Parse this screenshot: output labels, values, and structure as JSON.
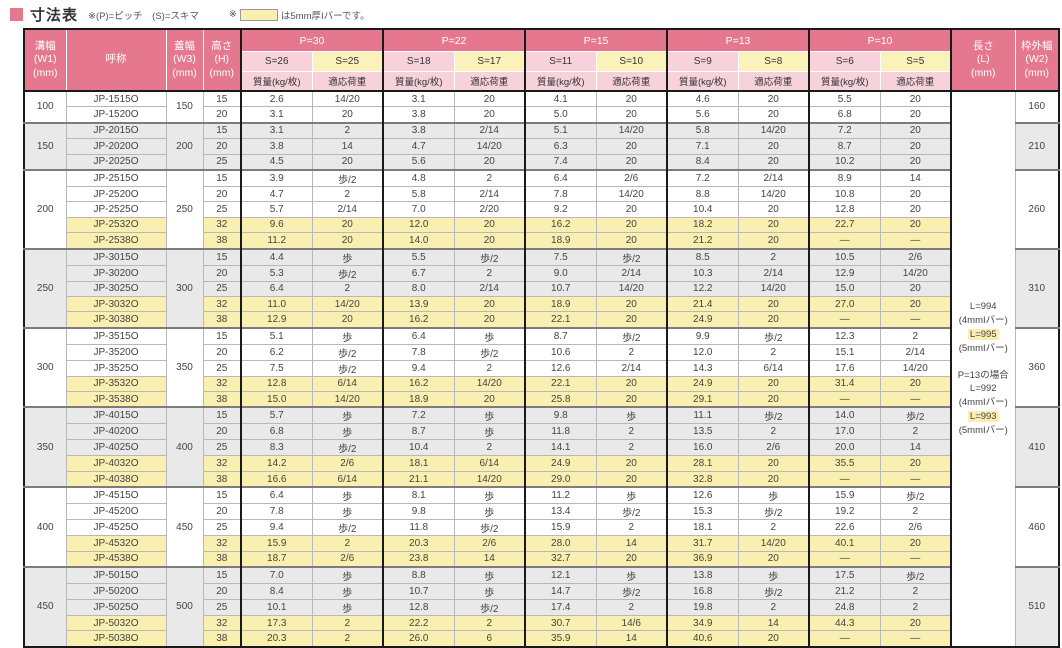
{
  "title": "寸法表",
  "legend": {
    "note1": "※(P)=ピッチ　(S)=スキマ",
    "note2_prefix": "※",
    "note2_suffix": "は5mm厚Iバーです。"
  },
  "colors": {
    "header_pink": "#e5788f",
    "subheader_pink": "#f7d2da",
    "s5_yellow": "#fbf2bb",
    "highlight_row_yellow": "#f9efb0",
    "group_gray": "#e9e9e9"
  },
  "headers": {
    "w1": "溝幅\n(W1)\n(mm)",
    "name": "呼称",
    "w3": "蓋幅\n(W3)\n(mm)",
    "h": "高さ\n(H)\n(mm)",
    "length": "長さ\n(L)\n(mm)",
    "w2": "枠外幅\n(W2)\n(mm)",
    "mass": "質量(kg/枚)",
    "load": "適応荷重"
  },
  "pitch_groups": [
    {
      "p": "P=30",
      "s4": "S=26",
      "s5": "S=25"
    },
    {
      "p": "P=22",
      "s4": "S=18",
      "s5": "S=17"
    },
    {
      "p": "P=15",
      "s4": "S=11",
      "s5": "S=10"
    },
    {
      "p": "P=13",
      "s4": "S=9",
      "s5": "S=8"
    },
    {
      "p": "P=10",
      "s4": "S=6",
      "s5": "S=5"
    }
  ],
  "length_notes": [
    {
      "text": "L=994",
      "hl": false
    },
    {
      "text": "(4mmIバー)",
      "hl": false
    },
    {
      "text": "L=995",
      "hl": true
    },
    {
      "text": "(5mmIバー)",
      "hl": false
    },
    {
      "text": "",
      "hl": false
    },
    {
      "text": "P=13の場合",
      "hl": false
    },
    {
      "text": "L=992",
      "hl": false
    },
    {
      "text": "(4mmIバー)",
      "hl": false
    },
    {
      "text": "L=993",
      "hl": true
    },
    {
      "text": "(5mmIバー)",
      "hl": false
    }
  ],
  "groups": [
    {
      "w1": "100",
      "w3": "150",
      "w2": "160",
      "shade": "white",
      "rows": [
        {
          "name": "JP-1515O",
          "h": "15",
          "hl": false,
          "v": [
            "2.6",
            "14/20",
            "3.1",
            "20",
            "4.1",
            "20",
            "4.6",
            "20",
            "5.5",
            "20"
          ]
        },
        {
          "name": "JP-1520O",
          "h": "20",
          "hl": false,
          "v": [
            "3.1",
            "20",
            "3.8",
            "20",
            "5.0",
            "20",
            "5.6",
            "20",
            "6.8",
            "20"
          ]
        }
      ]
    },
    {
      "w1": "150",
      "w3": "200",
      "w2": "210",
      "shade": "gray",
      "rows": [
        {
          "name": "JP-2015O",
          "h": "15",
          "hl": false,
          "v": [
            "3.1",
            "2",
            "3.8",
            "2/14",
            "5.1",
            "14/20",
            "5.8",
            "14/20",
            "7.2",
            "20"
          ]
        },
        {
          "name": "JP-2020O",
          "h": "20",
          "hl": false,
          "v": [
            "3.8",
            "14",
            "4.7",
            "14/20",
            "6.3",
            "20",
            "7.1",
            "20",
            "8.7",
            "20"
          ]
        },
        {
          "name": "JP-2025O",
          "h": "25",
          "hl": false,
          "v": [
            "4.5",
            "20",
            "5.6",
            "20",
            "7.4",
            "20",
            "8.4",
            "20",
            "10.2",
            "20"
          ]
        }
      ]
    },
    {
      "w1": "200",
      "w3": "250",
      "w2": "260",
      "shade": "white",
      "rows": [
        {
          "name": "JP-2515O",
          "h": "15",
          "hl": false,
          "v": [
            "3.9",
            "歩/2",
            "4.8",
            "2",
            "6.4",
            "2/6",
            "7.2",
            "2/14",
            "8.9",
            "14"
          ]
        },
        {
          "name": "JP-2520O",
          "h": "20",
          "hl": false,
          "v": [
            "4.7",
            "2",
            "5.8",
            "2/14",
            "7.8",
            "14/20",
            "8.8",
            "14/20",
            "10.8",
            "20"
          ]
        },
        {
          "name": "JP-2525O",
          "h": "25",
          "hl": false,
          "v": [
            "5.7",
            "2/14",
            "7.0",
            "2/20",
            "9.2",
            "20",
            "10.4",
            "20",
            "12.8",
            "20"
          ]
        },
        {
          "name": "JP-2532O",
          "h": "32",
          "hl": true,
          "v": [
            "9.6",
            "20",
            "12.0",
            "20",
            "16.2",
            "20",
            "18.2",
            "20",
            "22.7",
            "20"
          ]
        },
        {
          "name": "JP-2538O",
          "h": "38",
          "hl": true,
          "v": [
            "11.2",
            "20",
            "14.0",
            "20",
            "18.9",
            "20",
            "21.2",
            "20",
            "—",
            "—"
          ]
        }
      ]
    },
    {
      "w1": "250",
      "w3": "300",
      "w2": "310",
      "shade": "gray",
      "rows": [
        {
          "name": "JP-3015O",
          "h": "15",
          "hl": false,
          "v": [
            "4.4",
            "歩",
            "5.5",
            "歩/2",
            "7.5",
            "歩/2",
            "8.5",
            "2",
            "10.5",
            "2/6"
          ]
        },
        {
          "name": "JP-3020O",
          "h": "20",
          "hl": false,
          "v": [
            "5.3",
            "歩/2",
            "6.7",
            "2",
            "9.0",
            "2/14",
            "10.3",
            "2/14",
            "12.9",
            "14/20"
          ]
        },
        {
          "name": "JP-3025O",
          "h": "25",
          "hl": false,
          "v": [
            "6.4",
            "2",
            "8.0",
            "2/14",
            "10.7",
            "14/20",
            "12.2",
            "14/20",
            "15.0",
            "20"
          ]
        },
        {
          "name": "JP-3032O",
          "h": "32",
          "hl": true,
          "v": [
            "11.0",
            "14/20",
            "13.9",
            "20",
            "18.9",
            "20",
            "21.4",
            "20",
            "27.0",
            "20"
          ]
        },
        {
          "name": "JP-3038O",
          "h": "38",
          "hl": true,
          "v": [
            "12.9",
            "20",
            "16.2",
            "20",
            "22.1",
            "20",
            "24.9",
            "20",
            "—",
            "—"
          ]
        }
      ]
    },
    {
      "w1": "300",
      "w3": "350",
      "w2": "360",
      "shade": "white",
      "rows": [
        {
          "name": "JP-3515O",
          "h": "15",
          "hl": false,
          "v": [
            "5.1",
            "歩",
            "6.4",
            "歩",
            "8.7",
            "歩/2",
            "9.9",
            "歩/2",
            "12.3",
            "2"
          ]
        },
        {
          "name": "JP-3520O",
          "h": "20",
          "hl": false,
          "v": [
            "6.2",
            "歩/2",
            "7.8",
            "歩/2",
            "10.6",
            "2",
            "12.0",
            "2",
            "15.1",
            "2/14"
          ]
        },
        {
          "name": "JP-3525O",
          "h": "25",
          "hl": false,
          "v": [
            "7.5",
            "歩/2",
            "9.4",
            "2",
            "12.6",
            "2/14",
            "14.3",
            "6/14",
            "17.6",
            "14/20"
          ]
        },
        {
          "name": "JP-3532O",
          "h": "32",
          "hl": true,
          "v": [
            "12.8",
            "6/14",
            "16.2",
            "14/20",
            "22.1",
            "20",
            "24.9",
            "20",
            "31.4",
            "20"
          ]
        },
        {
          "name": "JP-3538O",
          "h": "38",
          "hl": true,
          "v": [
            "15.0",
            "14/20",
            "18.9",
            "20",
            "25.8",
            "20",
            "29.1",
            "20",
            "—",
            "—"
          ]
        }
      ]
    },
    {
      "w1": "350",
      "w3": "400",
      "w2": "410",
      "shade": "gray",
      "rows": [
        {
          "name": "JP-4015O",
          "h": "15",
          "hl": false,
          "v": [
            "5.7",
            "歩",
            "7.2",
            "歩",
            "9.8",
            "歩",
            "11.1",
            "歩/2",
            "14.0",
            "歩/2"
          ]
        },
        {
          "name": "JP-4020O",
          "h": "20",
          "hl": false,
          "v": [
            "6.8",
            "歩",
            "8.7",
            "歩",
            "11.8",
            "2",
            "13.5",
            "2",
            "17.0",
            "2"
          ]
        },
        {
          "name": "JP-4025O",
          "h": "25",
          "hl": false,
          "v": [
            "8.3",
            "歩/2",
            "10.4",
            "2",
            "14.1",
            "2",
            "16.0",
            "2/6",
            "20.0",
            "14"
          ]
        },
        {
          "name": "JP-4032O",
          "h": "32",
          "hl": true,
          "v": [
            "14.2",
            "2/6",
            "18.1",
            "6/14",
            "24.9",
            "20",
            "28.1",
            "20",
            "35.5",
            "20"
          ]
        },
        {
          "name": "JP-4038O",
          "h": "38",
          "hl": true,
          "v": [
            "16.6",
            "6/14",
            "21.1",
            "14/20",
            "29.0",
            "20",
            "32.8",
            "20",
            "—",
            "—"
          ]
        }
      ]
    },
    {
      "w1": "400",
      "w3": "450",
      "w2": "460",
      "shade": "white",
      "rows": [
        {
          "name": "JP-4515O",
          "h": "15",
          "hl": false,
          "v": [
            "6.4",
            "歩",
            "8.1",
            "歩",
            "11.2",
            "歩",
            "12.6",
            "歩",
            "15.9",
            "歩/2"
          ]
        },
        {
          "name": "JP-4520O",
          "h": "20",
          "hl": false,
          "v": [
            "7.8",
            "歩",
            "9.8",
            "歩",
            "13.4",
            "歩/2",
            "15.3",
            "歩/2",
            "19.2",
            "2"
          ]
        },
        {
          "name": "JP-4525O",
          "h": "25",
          "hl": false,
          "v": [
            "9.4",
            "歩/2",
            "11.8",
            "歩/2",
            "15.9",
            "2",
            "18.1",
            "2",
            "22.6",
            "2/6"
          ]
        },
        {
          "name": "JP-4532O",
          "h": "32",
          "hl": true,
          "v": [
            "15.9",
            "2",
            "20.3",
            "2/6",
            "28.0",
            "14",
            "31.7",
            "14/20",
            "40.1",
            "20"
          ]
        },
        {
          "name": "JP-4538O",
          "h": "38",
          "hl": true,
          "v": [
            "18.7",
            "2/6",
            "23.8",
            "14",
            "32.7",
            "20",
            "36.9",
            "20",
            "—",
            "—"
          ]
        }
      ]
    },
    {
      "w1": "450",
      "w3": "500",
      "w2": "510",
      "shade": "gray",
      "rows": [
        {
          "name": "JP-5015O",
          "h": "15",
          "hl": false,
          "v": [
            "7.0",
            "歩",
            "8.8",
            "歩",
            "12.1",
            "歩",
            "13.8",
            "歩",
            "17.5",
            "歩/2"
          ]
        },
        {
          "name": "JP-5020O",
          "h": "20",
          "hl": false,
          "v": [
            "8.4",
            "歩",
            "10.7",
            "歩",
            "14.7",
            "歩/2",
            "16.8",
            "歩/2",
            "21.2",
            "2"
          ]
        },
        {
          "name": "JP-5025O",
          "h": "25",
          "hl": false,
          "v": [
            "10.1",
            "歩",
            "12.8",
            "歩/2",
            "17.4",
            "2",
            "19.8",
            "2",
            "24.8",
            "2"
          ]
        },
        {
          "name": "JP-5032O",
          "h": "32",
          "hl": true,
          "v": [
            "17.3",
            "2",
            "22.2",
            "2",
            "30.7",
            "14/6",
            "34.9",
            "14",
            "44.3",
            "20"
          ]
        },
        {
          "name": "JP-5038O",
          "h": "38",
          "hl": true,
          "v": [
            "20.3",
            "2",
            "26.0",
            "6",
            "35.9",
            "14",
            "40.6",
            "20",
            "—",
            "—"
          ]
        }
      ]
    }
  ]
}
